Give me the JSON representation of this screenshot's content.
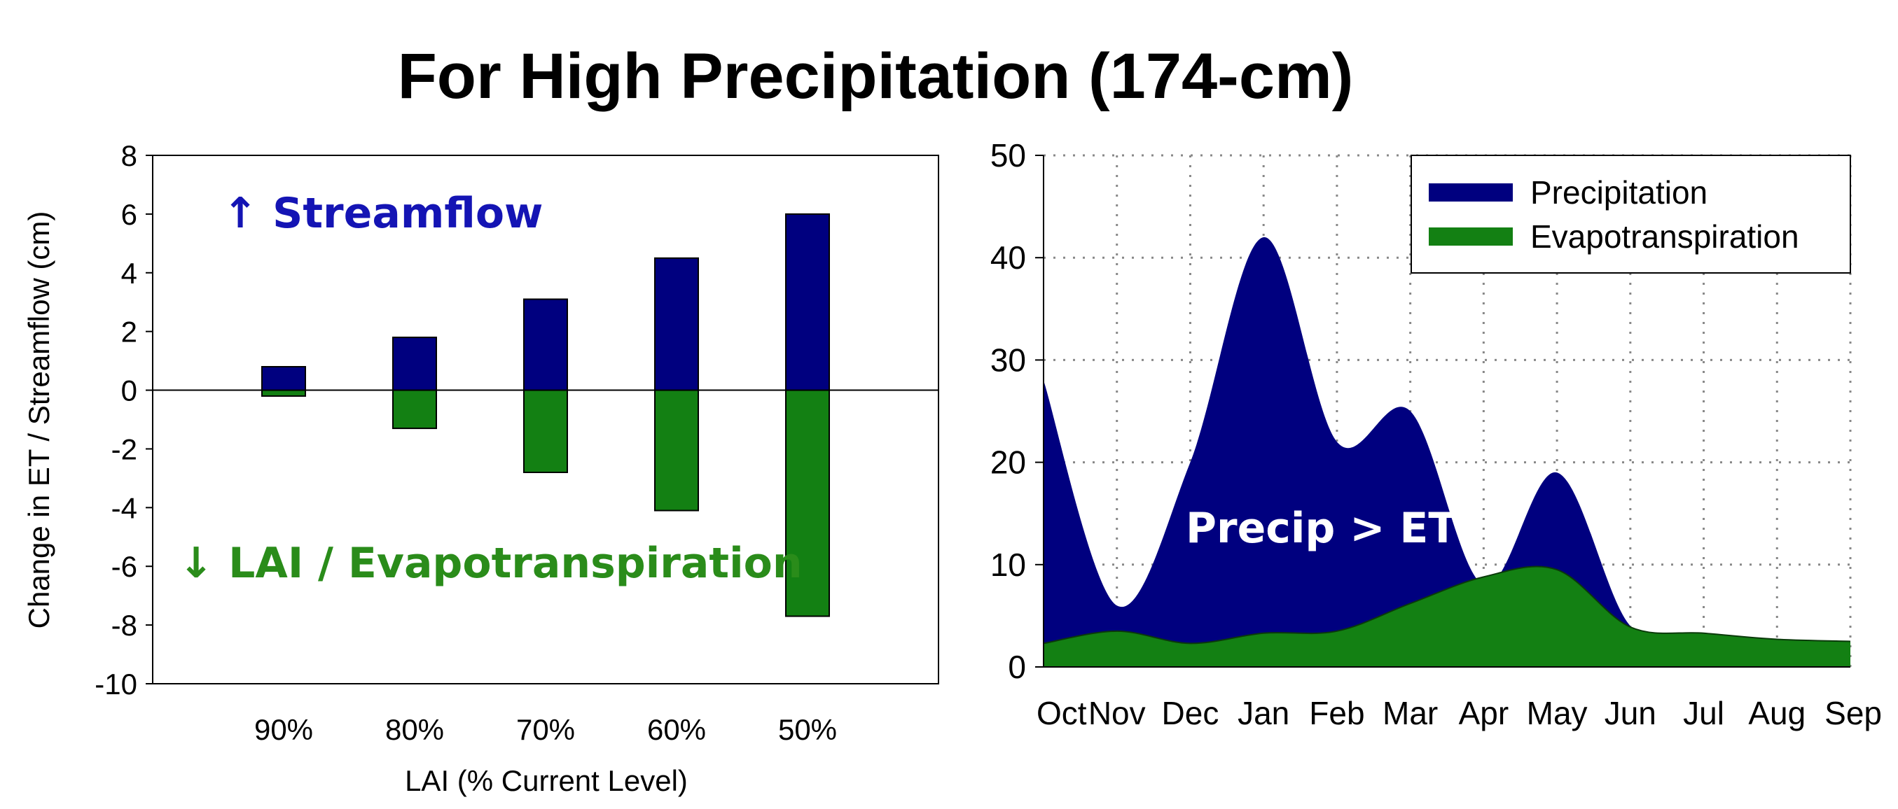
{
  "title": "For High Precipitation (174-cm)",
  "colors": {
    "precipitation": "#00007f",
    "evapotranspiration": "#138013",
    "streamflow_text": "#1414b4",
    "lai_text": "#2a8c1a"
  },
  "chart_data": [
    {
      "type": "bar",
      "categories": [
        "90%",
        "80%",
        "70%",
        "60%",
        "50%"
      ],
      "series": [
        {
          "values": [
            0.8,
            1.8,
            3.1,
            4.5,
            6.0
          ]
        },
        {
          "values": [
            -0.2,
            -1.3,
            -2.8,
            -4.1,
            -7.7
          ]
        }
      ],
      "xlabel": "LAI (% Current Level)",
      "ylabel": "Change in ET / Streamflow (cm)",
      "ylim": [
        -10,
        8
      ],
      "yticks": [
        8,
        6,
        4,
        2,
        0,
        -2,
        -4,
        -6,
        -8,
        -10
      ],
      "annotations": [
        "↑ Streamflow",
        "↓ LAI / Evapotranspiration"
      ],
      "grid": false
    },
    {
      "type": "area",
      "categories": [
        "Oct",
        "Nov",
        "Dec",
        "Jan",
        "Feb",
        "Mar",
        "Apr",
        "May",
        "Jun",
        "Jul",
        "Aug",
        "Sep"
      ],
      "series": [
        {
          "name": "Precipitation",
          "values": [
            28,
            6,
            20,
            42,
            22,
            25,
            8,
            19,
            4,
            3,
            2.7,
            2.4
          ]
        },
        {
          "name": "Evapotranspiration",
          "values": [
            2.3,
            3.5,
            2.3,
            3.3,
            3.5,
            6.2,
            8.8,
            9.5,
            3.9,
            3.3,
            2.7,
            2.5
          ]
        }
      ],
      "ylim": [
        0,
        50
      ],
      "yticks": [
        0,
        10,
        20,
        30,
        40,
        50
      ],
      "annotations": [
        "Precip > ET"
      ],
      "legend": "top-right",
      "grid": true
    }
  ]
}
